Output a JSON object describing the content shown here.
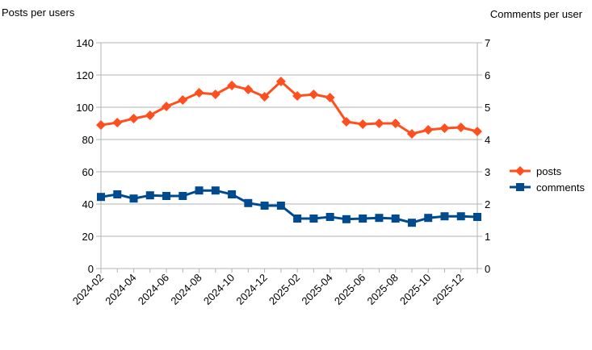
{
  "chart_data": {
    "type": "line",
    "ylabel_left": "Posts per users",
    "ylabel_right": "Comments per user",
    "ylim_left": [
      0,
      140
    ],
    "ylim_right": [
      0,
      7
    ],
    "yticks_left": [
      "0",
      "20",
      "40",
      "60",
      "80",
      "100",
      "120",
      "140"
    ],
    "yticks_right": [
      "0",
      "1",
      "2",
      "3",
      "4",
      "5",
      "6",
      "7"
    ],
    "grid": true,
    "legend": "right",
    "x": [
      "2024-02",
      "2024-03",
      "2024-04",
      "2024-05",
      "2024-06",
      "2024-07",
      "2024-08",
      "2024-09",
      "2024-10",
      "2024-11",
      "2024-12",
      "2025-01",
      "2025-02",
      "2025-03",
      "2025-04",
      "2025-05",
      "2025-06",
      "2025-07",
      "2025-08",
      "2025-09",
      "2025-10",
      "2025-11",
      "2025-12",
      "2026-01"
    ],
    "xtick_labels": [
      "2024-02",
      "2024-04",
      "2024-06",
      "2024-08",
      "2024-10",
      "2024-12",
      "2025-02",
      "2025-04",
      "2025-06",
      "2025-08",
      "2025-10",
      "2025-12"
    ],
    "series": [
      {
        "name": "posts",
        "axis": "left",
        "color": "#ff4f1f",
        "marker": "diamond",
        "values": [
          89,
          90.5,
          93,
          95,
          100.5,
          104.5,
          109,
          108,
          113.5,
          111,
          106.5,
          116,
          107,
          108,
          106,
          91,
          89.5,
          90,
          90,
          83.5,
          86,
          87,
          87.5,
          85
        ]
      },
      {
        "name": "comments",
        "axis": "right",
        "color": "#004a8f",
        "marker": "square",
        "values": [
          2.22,
          2.3,
          2.17,
          2.27,
          2.25,
          2.25,
          2.42,
          2.42,
          2.3,
          2.03,
          1.95,
          1.95,
          1.55,
          1.55,
          1.6,
          1.53,
          1.55,
          1.57,
          1.55,
          1.42,
          1.57,
          1.62,
          1.62,
          1.6
        ]
      }
    ]
  }
}
